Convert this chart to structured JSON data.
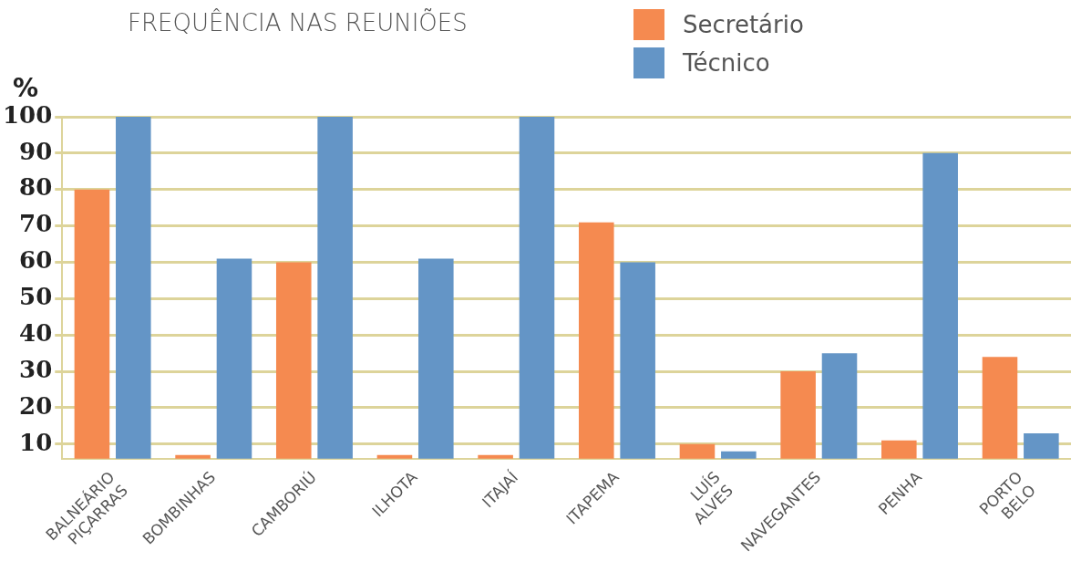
{
  "chart_data": {
    "type": "bar",
    "title": "FREQUÊNCIA NAS REUNIÕES",
    "ylabel": "%",
    "categories": [
      "BALNEÁRIO\nPIÇARRAS",
      "BOMBINHAS",
      "CAMBORIÚ",
      "ILHOTA",
      "ITAJAÍ",
      "ITAPEMA",
      "LUÍS\nALVES",
      "NAVEGANTES",
      "PENHA",
      "PORTO\nBELO"
    ],
    "series": [
      {
        "name": "Secretário",
        "color": "#f58a50",
        "values": [
          80,
          7,
          60,
          7,
          7,
          71,
          10,
          30,
          11,
          34
        ]
      },
      {
        "name": "Técnico",
        "color": "#6495c6",
        "values": [
          100,
          61,
          100,
          61,
          100,
          60,
          8,
          35,
          90,
          13
        ]
      }
    ],
    "ylim": [
      6,
      100
    ],
    "yticks": [
      10,
      20,
      30,
      40,
      50,
      60,
      70,
      80,
      90,
      100
    ],
    "grid": "y",
    "legend": "top right"
  }
}
